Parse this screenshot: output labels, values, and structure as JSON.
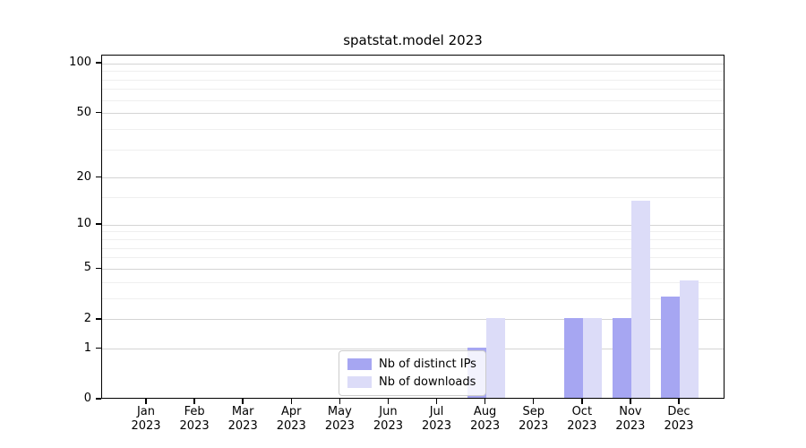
{
  "title": "spatstat.model 2023",
  "chart_data": {
    "type": "bar",
    "title": "spatstat.model 2023",
    "months": [
      "Jan",
      "Feb",
      "Mar",
      "Apr",
      "May",
      "Jun",
      "Jul",
      "Aug",
      "Sep",
      "Oct",
      "Nov",
      "Dec"
    ],
    "year": "2023",
    "series": [
      {
        "name": "Nb of distinct IPs",
        "color": "#a6a6f2",
        "values": [
          0,
          0,
          0,
          0,
          0,
          0,
          0,
          1,
          0,
          2,
          2,
          3
        ]
      },
      {
        "name": "Nb of downloads",
        "color": "#dcdcf8",
        "values": [
          0,
          0,
          0,
          0,
          0,
          0,
          0,
          2,
          0,
          2,
          14,
          4
        ]
      }
    ],
    "yticks": [
      0,
      1,
      2,
      5,
      10,
      20,
      50,
      100
    ],
    "minor_yticks": [
      3,
      4,
      6,
      7,
      8,
      9,
      15,
      30,
      40,
      60,
      70,
      80,
      90
    ],
    "scale": "log1p",
    "ymax": 112,
    "xlabel": "",
    "ylabel": "",
    "grid": true,
    "legend_position": "lower-center-inside",
    "colors": {
      "major_grid": "#d4d4d4",
      "minor_grid": "#efefef",
      "spine": "#000000",
      "background": "#ffffff"
    }
  },
  "legend": {
    "items": [
      {
        "label": "Nb of distinct IPs"
      },
      {
        "label": "Nb of downloads"
      }
    ]
  }
}
